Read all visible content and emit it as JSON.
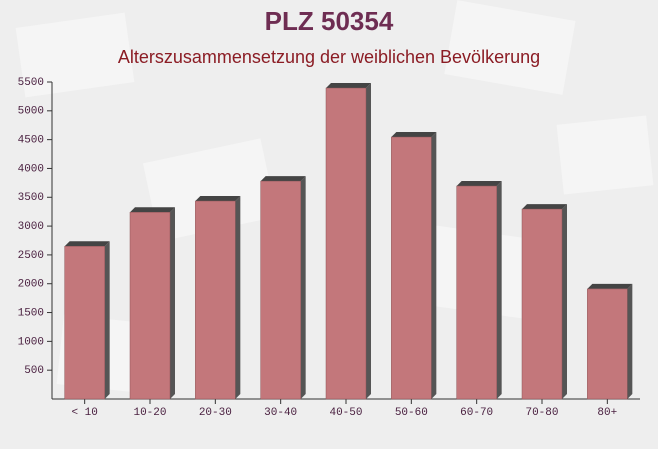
{
  "chart_data": {
    "type": "bar",
    "title": "PLZ 50354",
    "subtitle": "Alterszusammensetzung der weiblichen Bevölkerung",
    "categories": [
      "< 10",
      "10-20",
      "20-30",
      "30-40",
      "40-50",
      "50-60",
      "60-70",
      "70-80",
      "80+"
    ],
    "values": [
      2650,
      3240,
      3435,
      3780,
      5395,
      4545,
      3695,
      3295,
      1910
    ],
    "color": "#c3777b",
    "ylim": [
      0,
      5500
    ],
    "yticks": [
      500,
      1000,
      1500,
      2000,
      2500,
      3000,
      3500,
      4000,
      4500,
      5000,
      5500
    ]
  }
}
